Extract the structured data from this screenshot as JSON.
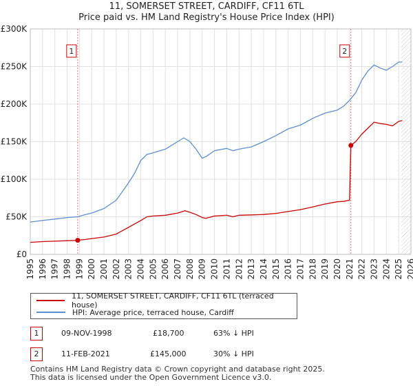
{
  "header": {
    "title": "11, SOMERSET STREET, CARDIFF, CF11 6TL",
    "subtitle": "Price paid vs. HM Land Registry's House Price Index (HPI)"
  },
  "colors": {
    "property": "#cc0000",
    "hpi": "#5b8fd4",
    "grid": "#e0e0e0",
    "hatch": "#c8c8c8"
  },
  "chart_data": {
    "type": "line",
    "title": "11, SOMERSET STREET, CARDIFF, CF11 6TL",
    "subtitle": "Price paid vs. HM Land Registry's House Price Index (HPI)",
    "xlim": [
      1995,
      2026
    ],
    "ylim": [
      0,
      300000
    ],
    "x_ticks": [
      1995,
      1996,
      1997,
      1998,
      1999,
      2000,
      2001,
      2002,
      2003,
      2004,
      2005,
      2006,
      2007,
      2008,
      2009,
      2010,
      2011,
      2012,
      2013,
      2014,
      2015,
      2016,
      2017,
      2018,
      2019,
      2020,
      2021,
      2022,
      2023,
      2024,
      2025,
      2026
    ],
    "y_ticks": [
      {
        "value": 0,
        "label": "£0"
      },
      {
        "value": 50000,
        "label": "£50K"
      },
      {
        "value": 100000,
        "label": "£100K"
      },
      {
        "value": 150000,
        "label": "£150K"
      },
      {
        "value": 200000,
        "label": "£200K"
      },
      {
        "value": 250000,
        "label": "£250K"
      },
      {
        "value": 300000,
        "label": "£300K"
      }
    ],
    "hatched_region_start": 2025.2,
    "series": [
      {
        "name": "11, SOMERSET STREET, CARDIFF, CF11 6TL (terraced house)",
        "color": "#cc0000",
        "x": [
          1995.0,
          1996.0,
          1997.0,
          1998.0,
          1998.86,
          1999.5,
          2000.0,
          2001.0,
          2002.0,
          2003.0,
          2004.0,
          2004.5,
          2005.0,
          2006.0,
          2007.0,
          2007.6,
          2008.0,
          2008.5,
          2009.0,
          2009.3,
          2010.0,
          2011.0,
          2011.5,
          2012.0,
          2013.0,
          2014.0,
          2015.0,
          2016.0,
          2017.0,
          2018.0,
          2019.0,
          2020.0,
          2020.5,
          2021.0,
          2021.11,
          2021.5,
          2022.0,
          2022.5,
          2023.0,
          2023.5,
          2024.0,
          2024.5,
          2025.0,
          2025.3
        ],
        "y": [
          16000,
          17000,
          17500,
          18200,
          18700,
          19800,
          21000,
          23000,
          27000,
          36000,
          45000,
          50000,
          51000,
          52000,
          55000,
          58000,
          56000,
          53000,
          49000,
          48000,
          51000,
          52000,
          50000,
          52000,
          52500,
          53000,
          54500,
          57000,
          59500,
          63000,
          67000,
          70000,
          70500,
          72000,
          145000,
          150000,
          160000,
          168000,
          176000,
          174000,
          173000,
          171000,
          177000,
          178000
        ],
        "points": [
          {
            "x": 1998.86,
            "y": 18700,
            "label": "1"
          },
          {
            "x": 2021.11,
            "y": 145000,
            "label": "2"
          }
        ]
      },
      {
        "name": "HPI: Average price, terraced house, Cardiff",
        "color": "#5b8fd4",
        "x": [
          1995.0,
          1996.0,
          1997.0,
          1998.0,
          1998.86,
          1999.5,
          2000.0,
          2001.0,
          2002.0,
          2003.0,
          2003.5,
          2004.0,
          2004.5,
          2005.0,
          2006.0,
          2006.5,
          2007.0,
          2007.5,
          2008.0,
          2008.5,
          2009.0,
          2009.3,
          2010.0,
          2011.0,
          2011.5,
          2012.0,
          2013.0,
          2014.0,
          2015.0,
          2016.0,
          2017.0,
          2018.0,
          2019.0,
          2020.0,
          2020.5,
          2021.0,
          2021.5,
          2022.0,
          2022.5,
          2023.0,
          2023.5,
          2024.0,
          2024.5,
          2025.0,
          2025.3
        ],
        "y": [
          43000,
          45000,
          47000,
          49000,
          50000,
          53000,
          55000,
          61000,
          72000,
          95000,
          108000,
          125000,
          133000,
          135000,
          140000,
          145000,
          150000,
          155000,
          150000,
          140000,
          128000,
          130000,
          138000,
          141000,
          138000,
          140000,
          143000,
          150000,
          158000,
          167000,
          172000,
          181000,
          188000,
          192000,
          197000,
          205000,
          215000,
          232000,
          244000,
          252000,
          248000,
          245000,
          250000,
          256000,
          256000
        ]
      }
    ],
    "annotations": [
      {
        "label": "1",
        "x": 1998.86
      },
      {
        "label": "2",
        "x": 2021.11
      }
    ]
  },
  "legend": {
    "items": [
      {
        "label": "11, SOMERSET STREET, CARDIFF, CF11 6TL (terraced house)"
      },
      {
        "label": "HPI: Average price, terraced house, Cardiff"
      }
    ]
  },
  "transactions": [
    {
      "num": "1",
      "date": "09-NOV-1998",
      "price": "£18,700",
      "hpi": "63% ↓ HPI"
    },
    {
      "num": "2",
      "date": "11-FEB-2021",
      "price": "£145,000",
      "hpi": "30% ↓ HPI"
    }
  ],
  "footer": {
    "line1": "Contains HM Land Registry data © Crown copyright and database right 2025.",
    "line2": "This data is licensed under the Open Government Licence v3.0."
  }
}
